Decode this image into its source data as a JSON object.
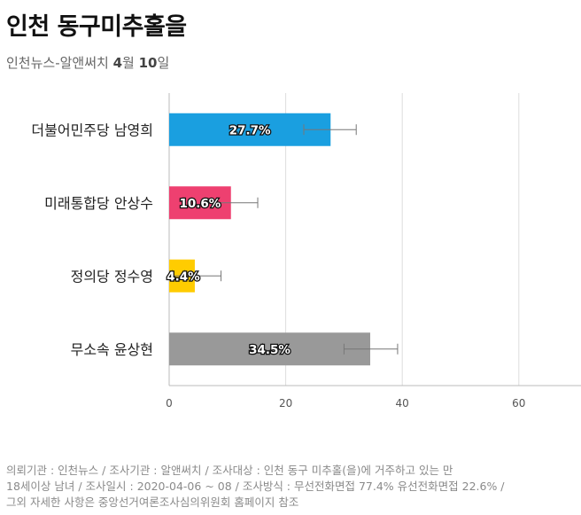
{
  "header": {
    "title": "인천 동구미추홀을",
    "subtitle_prefix": "인천뉴스-알앤써치 ",
    "subtitle_month": "4",
    "subtitle_month_unit": "월 ",
    "subtitle_day": "10",
    "subtitle_day_unit": "일"
  },
  "chart_data": {
    "type": "bar",
    "orientation": "horizontal",
    "categories": [
      "더불어민주당 남영희",
      "미래통합당 안상수",
      "정의당 정수영",
      "무소속 윤상현"
    ],
    "values": [
      27.7,
      10.6,
      4.4,
      34.5
    ],
    "value_labels": [
      "27.7%",
      "10.6%",
      "4.4%",
      "34.5%"
    ],
    "error_low": [
      23.1,
      6.1,
      0.1,
      30.0
    ],
    "error_high": [
      32.1,
      15.2,
      8.9,
      39.2
    ],
    "colors": [
      "#1a9fe0",
      "#ee4070",
      "#ffcc00",
      "#999999"
    ],
    "xlim": [
      0,
      70
    ],
    "xticks": [
      0,
      20,
      40,
      60
    ],
    "grid": true,
    "legend": "none"
  },
  "footer": {
    "line1": "의뢰기관 : 인천뉴스 / 조사기관 : 알앤써치 / 조사대상 : 인천 동구 미추홀(을)에 거주하고 있는 만",
    "line2": "18세이상 남녀 / 조사일시 : 2020-04-06 ~ 08 / 조사방식 : 무선전화면접 77.4% 유선전화면접 22.6% /",
    "line3": "그외 자세한 사항은 중앙선거여론조사심의위원회 홈페이지 참조"
  }
}
